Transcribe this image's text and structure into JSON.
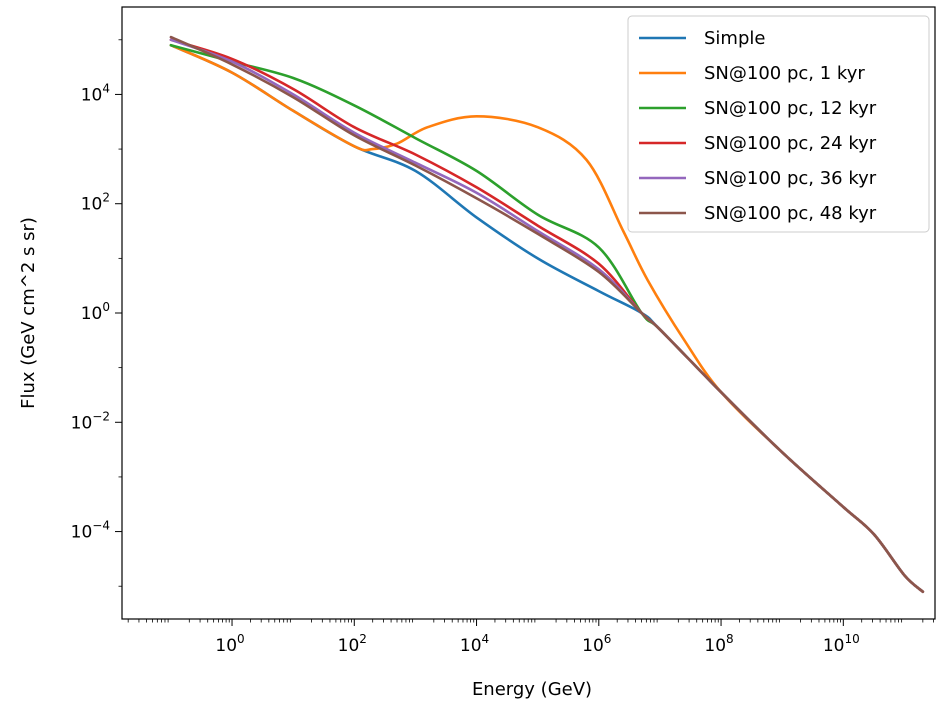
{
  "chart_data": {
    "type": "line",
    "title": "",
    "xlabel": "Energy (GeV)",
    "ylabel": "Flux (GeV cm^2 s sr)",
    "xscale": "log",
    "yscale": "log",
    "xlim_exp": [
      -1.8,
      11.5
    ],
    "ylim_exp": [
      -5.6,
      5.6
    ],
    "x_ticks_exp": [
      0,
      2,
      4,
      6,
      8,
      10
    ],
    "y_ticks_exp": [
      -4,
      -2,
      0,
      2,
      4
    ],
    "grid": false,
    "legend": "top-right",
    "series": [
      {
        "name": "Simple",
        "color": "#1f77b4",
        "log10_points": [
          [
            -1,
            4.9
          ],
          [
            0,
            4.4
          ],
          [
            1,
            3.7
          ],
          [
            2,
            3.05
          ],
          [
            3,
            2.6
          ],
          [
            4,
            1.75
          ],
          [
            5,
            1.0
          ],
          [
            6,
            0.4
          ],
          [
            6.7,
            0.0
          ],
          [
            7,
            -0.3
          ],
          [
            8,
            -1.45
          ],
          [
            9,
            -2.55
          ],
          [
            10,
            -3.55
          ],
          [
            10.5,
            -4.05
          ],
          [
            11,
            -4.8
          ],
          [
            11.3,
            -5.1
          ]
        ]
      },
      {
        "name": "SN@100 pc, 1 kyr",
        "color": "#ff7f0e",
        "log10_points": [
          [
            -1,
            4.9
          ],
          [
            0,
            4.4
          ],
          [
            1,
            3.7
          ],
          [
            2,
            3.05
          ],
          [
            2.3,
            3.0
          ],
          [
            2.7,
            3.1
          ],
          [
            3.2,
            3.4
          ],
          [
            4,
            3.6
          ],
          [
            5,
            3.4
          ],
          [
            5.8,
            2.8
          ],
          [
            6.4,
            1.5
          ],
          [
            6.8,
            0.6
          ],
          [
            7.4,
            -0.5
          ],
          [
            8,
            -1.45
          ],
          [
            9,
            -2.55
          ],
          [
            10,
            -3.55
          ],
          [
            10.5,
            -4.05
          ],
          [
            11,
            -4.8
          ],
          [
            11.3,
            -5.1
          ]
        ]
      },
      {
        "name": "SN@100 pc, 12 kyr",
        "color": "#2ca02c",
        "log10_points": [
          [
            -1,
            4.9
          ],
          [
            0,
            4.6
          ],
          [
            1,
            4.3
          ],
          [
            2,
            3.8
          ],
          [
            3,
            3.2
          ],
          [
            4,
            2.6
          ],
          [
            5,
            1.8
          ],
          [
            6,
            1.2
          ],
          [
            6.7,
            0.0
          ],
          [
            7,
            -0.3
          ],
          [
            8,
            -1.45
          ],
          [
            9,
            -2.55
          ],
          [
            10,
            -3.55
          ],
          [
            10.5,
            -4.05
          ],
          [
            11,
            -4.8
          ],
          [
            11.3,
            -5.1
          ]
        ]
      },
      {
        "name": "SN@100 pc, 24 kyr",
        "color": "#d62728",
        "log10_points": [
          [
            -1,
            5.0
          ],
          [
            0,
            4.65
          ],
          [
            1,
            4.1
          ],
          [
            2,
            3.4
          ],
          [
            3,
            2.9
          ],
          [
            4,
            2.3
          ],
          [
            5,
            1.6
          ],
          [
            6,
            0.9
          ],
          [
            6.7,
            0.0
          ],
          [
            7,
            -0.3
          ],
          [
            8,
            -1.45
          ],
          [
            9,
            -2.55
          ],
          [
            10,
            -3.55
          ],
          [
            10.5,
            -4.05
          ],
          [
            11,
            -4.8
          ],
          [
            11.3,
            -5.1
          ]
        ]
      },
      {
        "name": "SN@100 pc, 36 kyr",
        "color": "#9467bd",
        "log10_points": [
          [
            -1,
            5.0
          ],
          [
            0,
            4.6
          ],
          [
            1,
            4.0
          ],
          [
            2,
            3.3
          ],
          [
            3,
            2.75
          ],
          [
            4,
            2.2
          ],
          [
            5,
            1.5
          ],
          [
            6,
            0.8
          ],
          [
            6.7,
            0.0
          ],
          [
            7,
            -0.3
          ],
          [
            8,
            -1.45
          ],
          [
            9,
            -2.55
          ],
          [
            10,
            -3.55
          ],
          [
            10.5,
            -4.05
          ],
          [
            11,
            -4.8
          ],
          [
            11.3,
            -5.1
          ]
        ]
      },
      {
        "name": "SN@100 pc, 48 kyr",
        "color": "#8c564b",
        "log10_points": [
          [
            -1,
            5.05
          ],
          [
            0,
            4.55
          ],
          [
            1,
            3.95
          ],
          [
            2,
            3.25
          ],
          [
            3,
            2.7
          ],
          [
            4,
            2.1
          ],
          [
            5,
            1.45
          ],
          [
            6,
            0.75
          ],
          [
            6.7,
            0.0
          ],
          [
            7,
            -0.3
          ],
          [
            8,
            -1.45
          ],
          [
            9,
            -2.55
          ],
          [
            10,
            -3.55
          ],
          [
            10.5,
            -4.05
          ],
          [
            11,
            -4.8
          ],
          [
            11.3,
            -5.1
          ]
        ]
      }
    ]
  }
}
